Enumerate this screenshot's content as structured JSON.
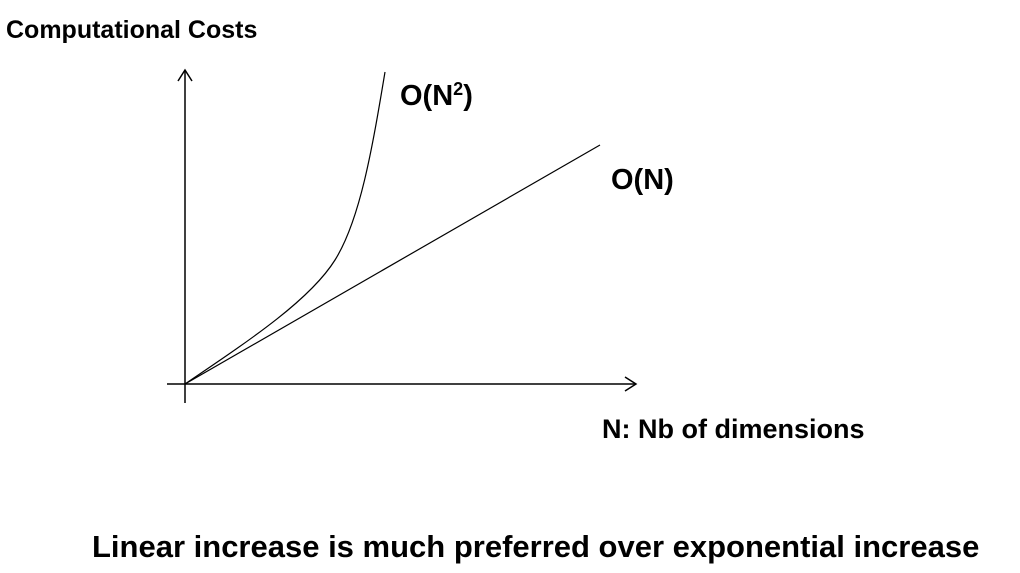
{
  "chart_data": {
    "type": "line",
    "ylabel": "Computational Costs",
    "xlabel": "N: Nb of dimensions",
    "series": [
      {
        "name": "O(N²)",
        "label_base": "O(N",
        "label_sup": "2",
        "label_end": ")"
      },
      {
        "name": "O(N)"
      }
    ],
    "grid": false,
    "axes_arrows": true
  },
  "caption": "Linear increase is much preferred over exponential increase",
  "colors": {
    "background": "#ffffff",
    "ink": "#000000"
  }
}
